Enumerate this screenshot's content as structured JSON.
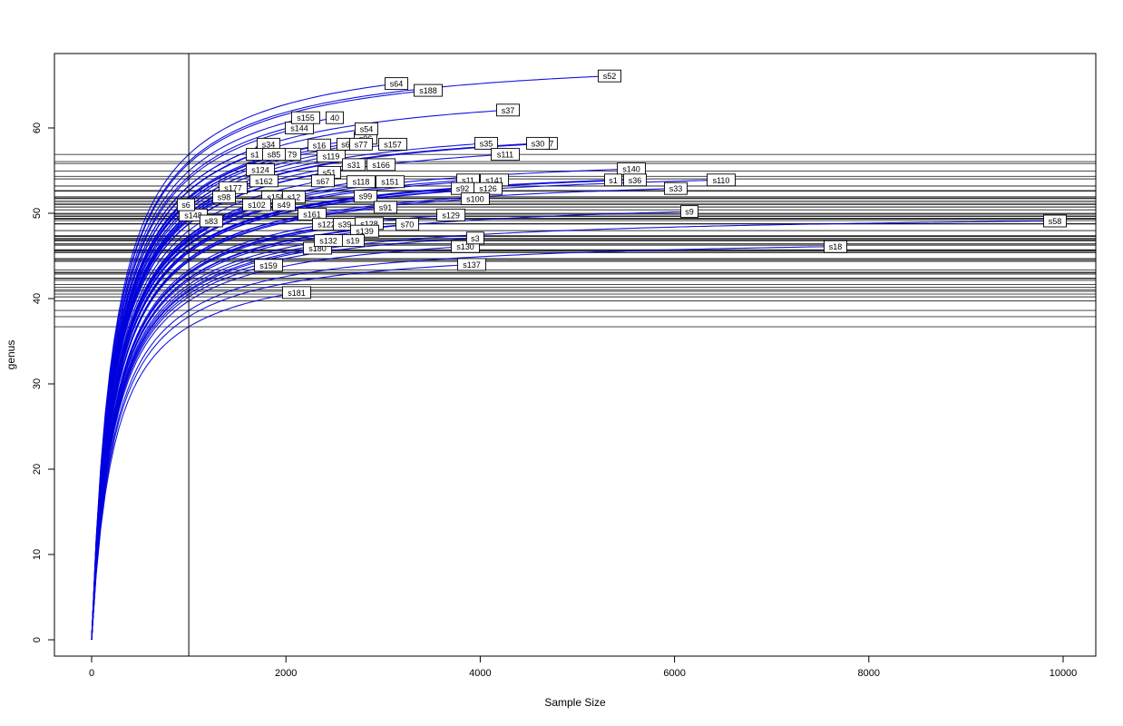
{
  "figure": {
    "background": "#ffffff"
  },
  "chart_data": {
    "type": "line",
    "title": "",
    "xlabel": "Sample Size",
    "ylabel": "genus",
    "x_ticks": [
      0,
      2000,
      4000,
      6000,
      8000,
      10000
    ],
    "y_ticks": [
      0,
      10,
      20,
      30,
      40,
      50,
      60
    ],
    "xlim": [
      0,
      10340
    ],
    "ylim": [
      0,
      70.7
    ],
    "grid": false,
    "legend": "none",
    "curve_color": "#0000dd",
    "reference_line_color": "#1a1a1a",
    "sample_vline_x": 1000,
    "hlines_meaning": "horizontal line per sample at its rarefied richness at sample size 1000",
    "samples": [
      {
        "label": "40",
        "size": 2502,
        "genus": 61.2,
        "frag": true
      },
      {
        "label": "s144",
        "size": 2138,
        "genus": 60
      },
      {
        "label": "s155",
        "size": 2204,
        "genus": 61.2
      },
      {
        "label": "s96",
        "size": 2820,
        "genus": 58.8
      },
      {
        "label": "s54",
        "size": 2829,
        "genus": 59.9
      },
      {
        "label": "s34",
        "size": 1821,
        "genus": 58.1
      },
      {
        "label": "s6",
        "size": 2614,
        "genus": 58.1,
        "frag": true
      },
      {
        "label": "s16",
        "size": 2344,
        "genus": 58
      },
      {
        "label": "s77",
        "size": 2773,
        "genus": 58.1
      },
      {
        "label": "s157",
        "size": 3100,
        "genus": 58.1
      },
      {
        "label": "7",
        "size": 4733,
        "genus": 58.2,
        "frag": true
      },
      {
        "label": "s35",
        "size": 4062,
        "genus": 58.2
      },
      {
        "label": "s30",
        "size": 4594,
        "genus": 58.2
      },
      {
        "label": "s1",
        "size": 1681,
        "genus": 56.9,
        "frag": true
      },
      {
        "label": "79",
        "size": 2064,
        "genus": 56.9,
        "frag": true
      },
      {
        "label": "s85",
        "size": 1877,
        "genus": 56.9
      },
      {
        "label": "s111",
        "size": 4258,
        "genus": 56.9
      },
      {
        "label": "s119",
        "size": 2465,
        "genus": 56.7
      },
      {
        "label": "s31",
        "size": 2699,
        "genus": 55.7
      },
      {
        "label": "s166",
        "size": 2979,
        "genus": 55.7
      },
      {
        "label": "s124",
        "size": 1737,
        "genus": 55.1
      },
      {
        "label": "s51",
        "size": 2446,
        "genus": 54.8
      },
      {
        "label": "s140",
        "size": 5556,
        "genus": 55.2
      },
      {
        "label": "s162",
        "size": 1774,
        "genus": 53.8
      },
      {
        "label": "s67",
        "size": 2381,
        "genus": 53.8
      },
      {
        "label": "s118",
        "size": 2773,
        "genus": 53.7
      },
      {
        "label": "s151",
        "size": 3072,
        "genus": 53.7
      },
      {
        "label": "s11",
        "size": 3875,
        "genus": 53.9
      },
      {
        "label": "s141",
        "size": 4146,
        "genus": 53.9
      },
      {
        "label": "s1",
        "size": 5369,
        "genus": 53.9,
        "frag": true
      },
      {
        "label": "s36",
        "size": 5593,
        "genus": 53.9
      },
      {
        "label": "s110",
        "size": 6480,
        "genus": 53.9
      },
      {
        "label": "s33",
        "size": 6013,
        "genus": 52.9
      },
      {
        "label": "s177",
        "size": 1457,
        "genus": 53
      },
      {
        "label": "s98",
        "size": 1363,
        "genus": 51.9
      },
      {
        "label": "s158",
        "size": 1896,
        "genus": 51.9
      },
      {
        "label": "s12",
        "size": 2082,
        "genus": 51.9
      },
      {
        "label": "s92",
        "size": 3819,
        "genus": 52.9
      },
      {
        "label": "s126",
        "size": 4080,
        "genus": 52.9
      },
      {
        "label": "s100",
        "size": 3949,
        "genus": 51.7
      },
      {
        "label": "s102",
        "size": 1699,
        "genus": 51
      },
      {
        "label": "s49",
        "size": 1979,
        "genus": 51
      },
      {
        "label": "s148",
        "size": 1046,
        "genus": 49.8
      },
      {
        "label": "s6",
        "size": 971,
        "genus": 51
      },
      {
        "label": "s99",
        "size": 2820,
        "genus": 52
      },
      {
        "label": "s9",
        "size": 6153,
        "genus": 50.2
      },
      {
        "label": "s83",
        "size": 1232,
        "genus": 49.1
      },
      {
        "label": "s161",
        "size": 2269,
        "genus": 49.9
      },
      {
        "label": "s91",
        "size": 3025,
        "genus": 50.7
      },
      {
        "label": "s129",
        "size": 3698,
        "genus": 49.8
      },
      {
        "label": "s122",
        "size": 2418,
        "genus": 48.7
      },
      {
        "label": "s39",
        "size": 2605,
        "genus": 48.7
      },
      {
        "label": "s128",
        "size": 2857,
        "genus": 48.8
      },
      {
        "label": "s70",
        "size": 3249,
        "genus": 48.7
      },
      {
        "label": "s139",
        "size": 2810,
        "genus": 47.9
      },
      {
        "label": "s180",
        "size": 2325,
        "genus": 45.9
      },
      {
        "label": "s19",
        "size": 2689,
        "genus": 46.8
      },
      {
        "label": "s132",
        "size": 2437,
        "genus": 46.8
      },
      {
        "label": "s130",
        "size": 3847,
        "genus": 46.1
      },
      {
        "label": "s3",
        "size": 3949,
        "genus": 47.1
      },
      {
        "label": "s18",
        "size": 7656,
        "genus": 46.1
      },
      {
        "label": "s58",
        "size": 9916,
        "genus": 49.1
      },
      {
        "label": "s137",
        "size": 3912,
        "genus": 44
      },
      {
        "label": "s159",
        "size": 1821,
        "genus": 43.9
      },
      {
        "label": "s181",
        "size": 2110,
        "genus": 40.7
      },
      {
        "label": "s52",
        "size": 5331,
        "genus": 66.1
      },
      {
        "label": "s64",
        "size": 3137,
        "genus": 65.2
      },
      {
        "label": "s188",
        "size": 3464,
        "genus": 64.4
      },
      {
        "label": "s37",
        "size": 4286,
        "genus": 62.1
      }
    ]
  }
}
